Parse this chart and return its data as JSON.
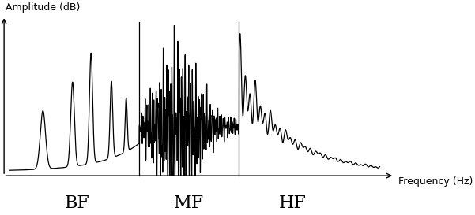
{
  "xlabel": "Frequency (Hz)",
  "ylabel": "Amplitude (dB)",
  "bg_color": "#ffffff",
  "line_color": "#000000",
  "zone_line_color": "#000000",
  "label_color": "#000000",
  "zone_labels": [
    "BF",
    "MF",
    "HF"
  ],
  "zone_boundaries": [
    0.35,
    0.62
  ],
  "label_fontsize": 16,
  "axis_label_fontsize": 9
}
